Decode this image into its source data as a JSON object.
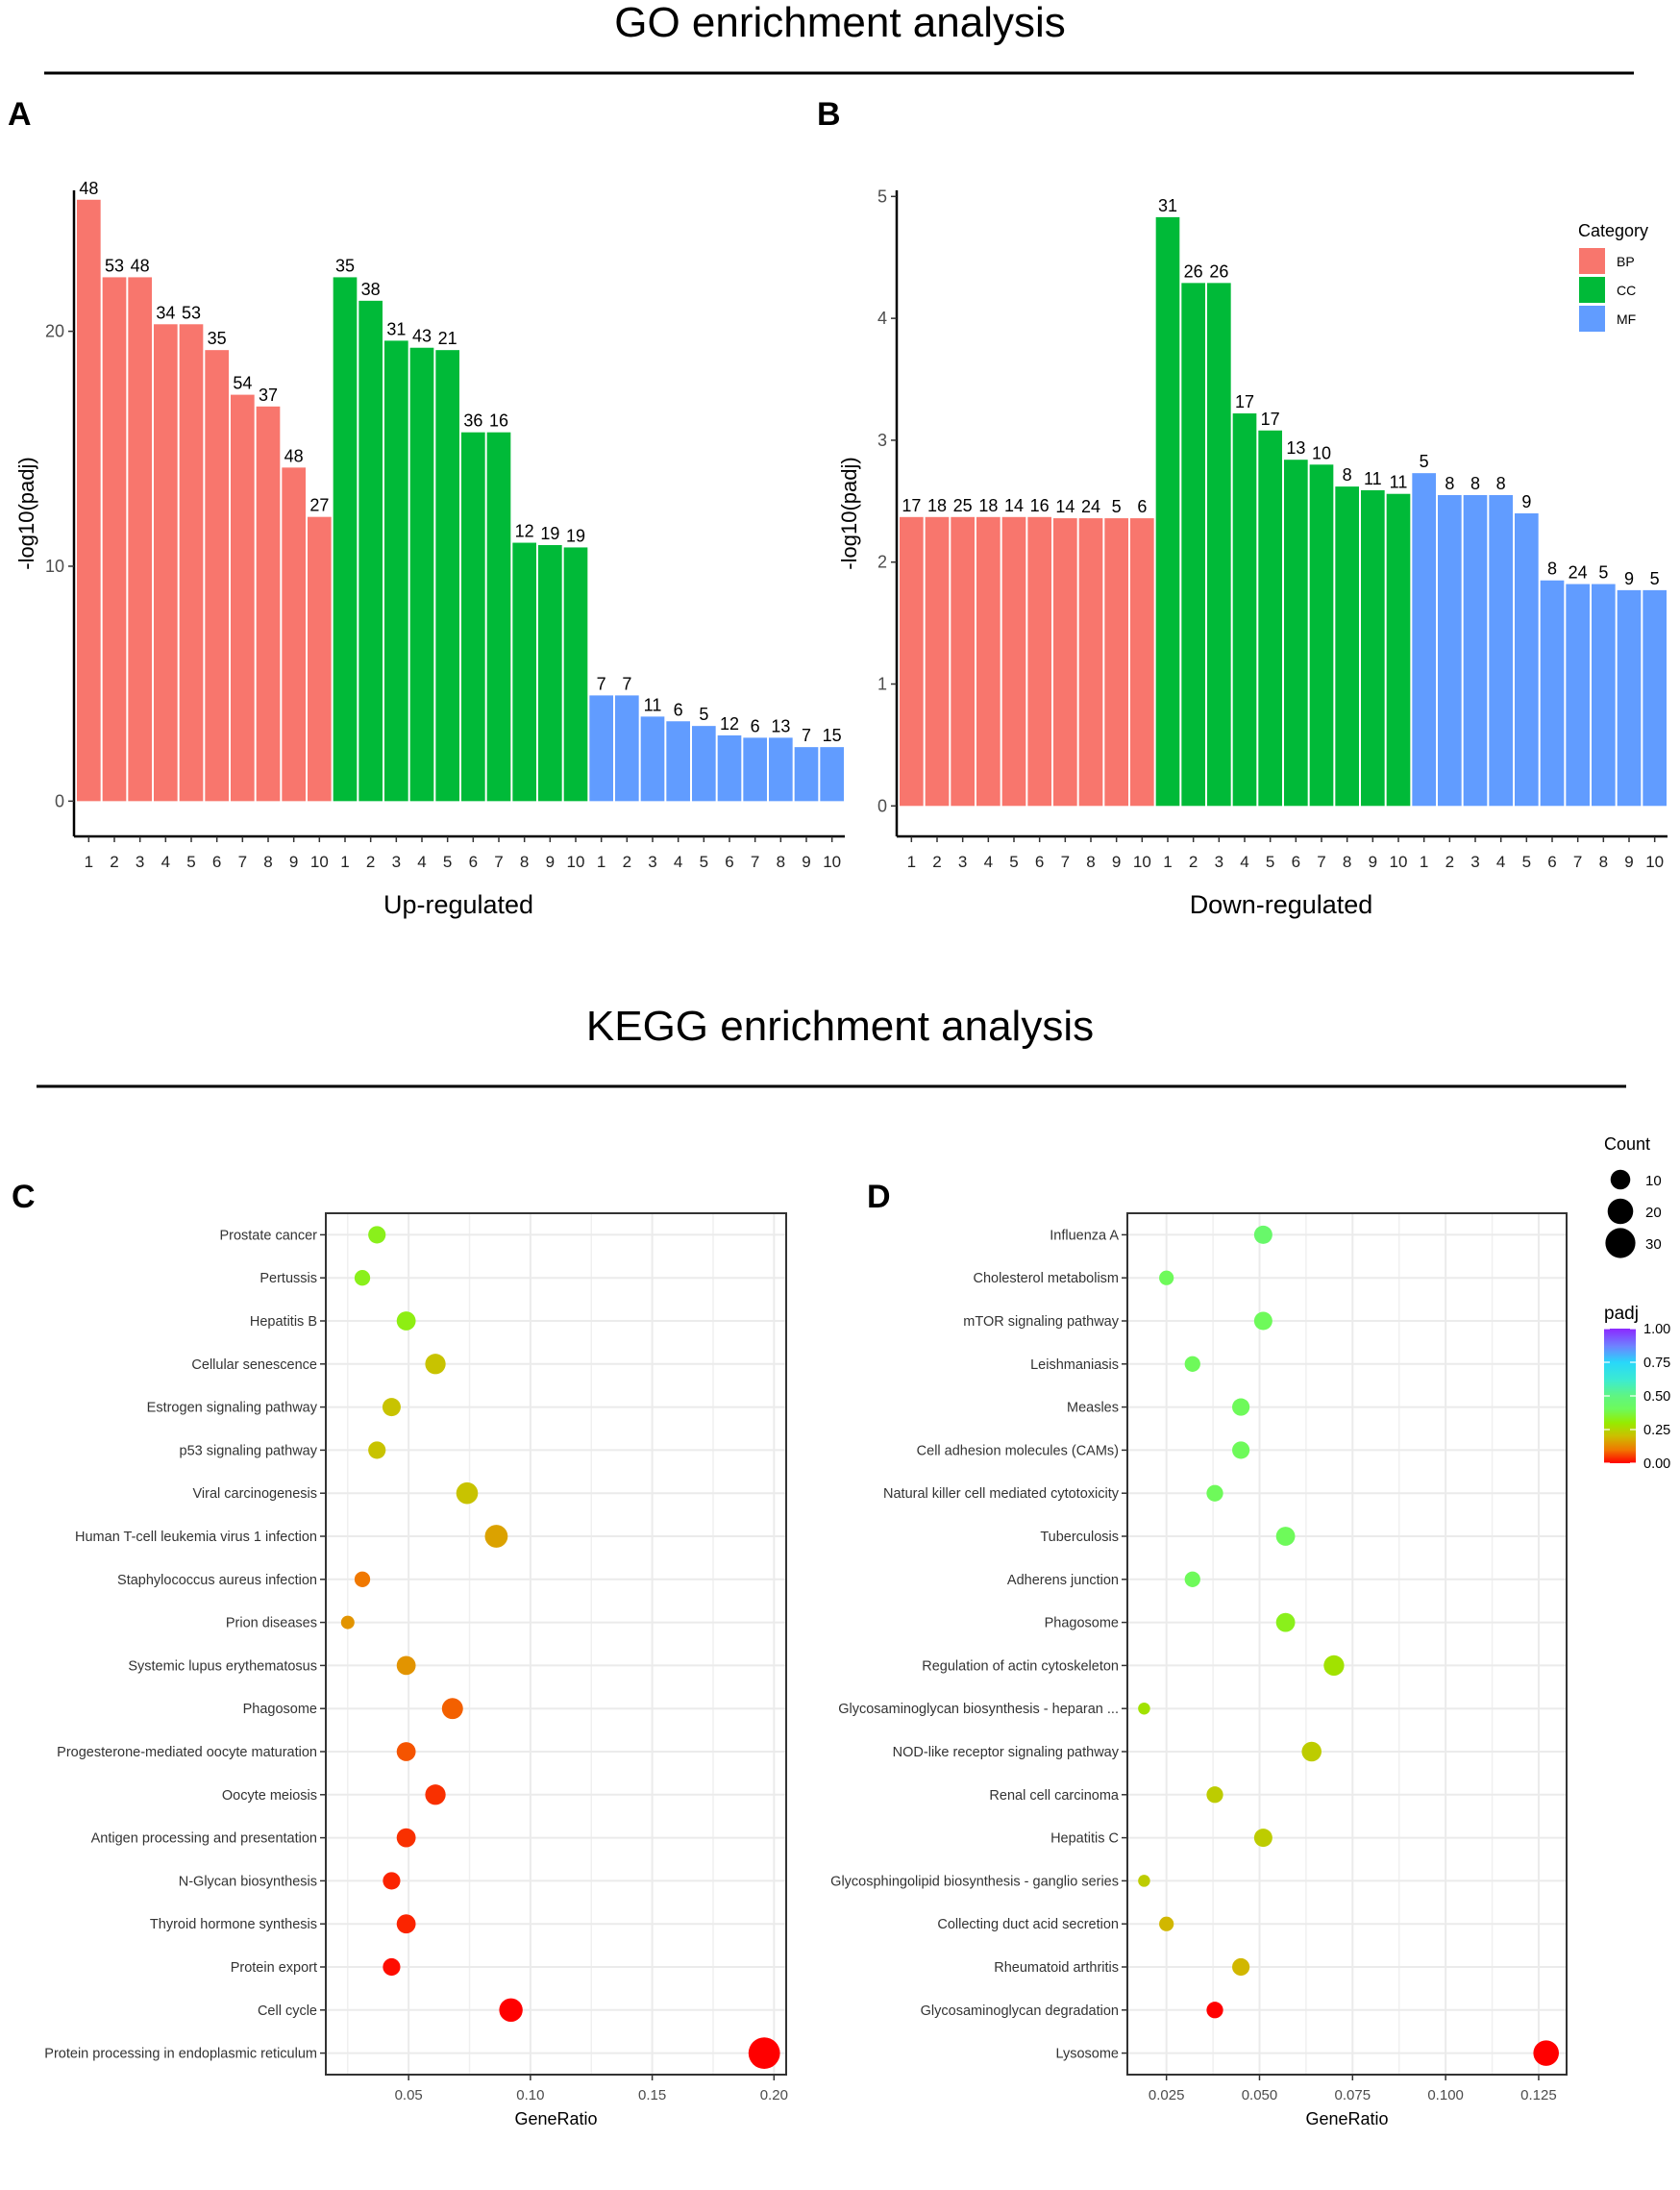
{
  "figure": {
    "go_section_title": "GO enrichment analysis",
    "kegg_section_title": "KEGG enrichment analysis",
    "panel_labels": [
      "A",
      "B",
      "C",
      "D"
    ]
  },
  "chart_data": [
    {
      "panel": "A",
      "type": "bar",
      "xlabel": "Up-regulated",
      "ylabel": "-log10(padj)",
      "ylim": [
        -1.5,
        26
      ],
      "yticks": [
        0,
        10,
        20
      ],
      "grid": false,
      "categories": [
        "1",
        "2",
        "3",
        "4",
        "5",
        "6",
        "7",
        "8",
        "9",
        "10",
        "1",
        "2",
        "3",
        "4",
        "5",
        "6",
        "7",
        "8",
        "9",
        "10",
        "1",
        "2",
        "3",
        "4",
        "5",
        "6",
        "7",
        "8",
        "9",
        "10"
      ],
      "series": [
        {
          "name": "BP",
          "color": "#F8766D",
          "values": [
            25.6,
            22.3,
            22.3,
            20.3,
            20.3,
            19.2,
            17.3,
            16.8,
            14.2,
            12.1
          ],
          "labels": [
            48,
            53,
            48,
            34,
            53,
            35,
            54,
            37,
            48,
            27
          ]
        },
        {
          "name": "CC",
          "color": "#00BA38",
          "values": [
            22.3,
            21.3,
            19.6,
            19.3,
            19.2,
            15.7,
            15.7,
            11.0,
            10.9,
            10.8
          ],
          "labels": [
            35,
            38,
            31,
            43,
            21,
            36,
            16,
            12,
            19,
            19
          ]
        },
        {
          "name": "MF",
          "color": "#619CFF",
          "values": [
            4.5,
            4.5,
            3.6,
            3.4,
            3.2,
            2.8,
            2.7,
            2.7,
            2.3,
            2.3
          ],
          "labels": [
            7,
            7,
            11,
            6,
            5,
            12,
            6,
            13,
            7,
            15
          ]
        }
      ]
    },
    {
      "panel": "B",
      "type": "bar",
      "xlabel": "Down-regulated",
      "ylabel": "-log10(padj)",
      "ylim": [
        -0.25,
        5.05
      ],
      "yticks": [
        0,
        1,
        2,
        3,
        4,
        5
      ],
      "grid": false,
      "legend": {
        "title": "Category",
        "position": "top-right",
        "items": [
          "BP",
          "CC",
          "MF"
        ]
      },
      "categories": [
        "1",
        "2",
        "3",
        "4",
        "5",
        "6",
        "7",
        "8",
        "9",
        "10",
        "1",
        "2",
        "3",
        "4",
        "5",
        "6",
        "7",
        "8",
        "9",
        "10",
        "1",
        "2",
        "3",
        "4",
        "5",
        "6",
        "7",
        "8",
        "9",
        "10"
      ],
      "series": [
        {
          "name": "BP",
          "color": "#F8766D",
          "values": [
            2.37,
            2.37,
            2.37,
            2.37,
            2.37,
            2.37,
            2.36,
            2.36,
            2.36,
            2.36
          ],
          "labels": [
            17,
            18,
            25,
            18,
            14,
            16,
            14,
            24,
            5,
            6
          ]
        },
        {
          "name": "CC",
          "color": "#00BA38",
          "values": [
            4.83,
            4.29,
            4.29,
            3.22,
            3.08,
            2.84,
            2.8,
            2.62,
            2.59,
            2.56
          ],
          "labels": [
            31,
            26,
            26,
            17,
            17,
            13,
            10,
            8,
            11,
            11
          ]
        },
        {
          "name": "MF",
          "color": "#619CFF",
          "values": [
            2.73,
            2.55,
            2.55,
            2.55,
            2.4,
            1.85,
            1.82,
            1.82,
            1.77,
            1.77
          ],
          "labels": [
            5,
            8,
            8,
            8,
            9,
            8,
            24,
            5,
            9,
            5
          ]
        }
      ]
    },
    {
      "panel": "C",
      "type": "scatter",
      "subtitle": "Up-regulated",
      "xlabel": "GeneRatio",
      "ylabel": "",
      "xlim": [
        0.016,
        0.205
      ],
      "xticks": [
        "0.05",
        "0.10",
        "0.15",
        "0.20"
      ],
      "xtick_values": [
        0.05,
        0.1,
        0.15,
        0.2
      ],
      "grid": true,
      "points": [
        {
          "term": "Prostate cancer",
          "gene_ratio": 0.037,
          "count": 7,
          "padj": 0.33
        },
        {
          "term": "Pertussis",
          "gene_ratio": 0.031,
          "count": 5,
          "padj": 0.33
        },
        {
          "term": "Hepatitis B",
          "gene_ratio": 0.049,
          "count": 9,
          "padj": 0.32
        },
        {
          "term": "Cellular senescence",
          "gene_ratio": 0.061,
          "count": 11,
          "padj": 0.21
        },
        {
          "term": "Estrogen signaling pathway",
          "gene_ratio": 0.043,
          "count": 8,
          "padj": 0.21
        },
        {
          "term": "p53 signaling pathway",
          "gene_ratio": 0.037,
          "count": 7,
          "padj": 0.21
        },
        {
          "term": "Viral carcinogenesis",
          "gene_ratio": 0.074,
          "count": 13,
          "padj": 0.21
        },
        {
          "term": "Human T-cell leukemia virus 1 infection",
          "gene_ratio": 0.086,
          "count": 15,
          "padj": 0.16
        },
        {
          "term": "Staphylococcus aureus infection",
          "gene_ratio": 0.031,
          "count": 5,
          "padj": 0.1
        },
        {
          "term": "Prion diseases",
          "gene_ratio": 0.025,
          "count": 3,
          "padj": 0.14
        },
        {
          "term": "Systemic lupus erythematosus",
          "gene_ratio": 0.049,
          "count": 9,
          "padj": 0.14
        },
        {
          "term": "Phagosome",
          "gene_ratio": 0.068,
          "count": 12,
          "padj": 0.08
        },
        {
          "term": "Progesterone-mediated oocyte maturation",
          "gene_ratio": 0.049,
          "count": 9,
          "padj": 0.07
        },
        {
          "term": "Oocyte meiosis",
          "gene_ratio": 0.061,
          "count": 11,
          "padj": 0.04
        },
        {
          "term": "Antigen processing and presentation",
          "gene_ratio": 0.049,
          "count": 9,
          "padj": 0.04
        },
        {
          "term": "N-Glycan biosynthesis",
          "gene_ratio": 0.043,
          "count": 7,
          "padj": 0.03
        },
        {
          "term": "Thyroid hormone synthesis",
          "gene_ratio": 0.049,
          "count": 9,
          "padj": 0.03
        },
        {
          "term": "Protein export",
          "gene_ratio": 0.043,
          "count": 7,
          "padj": 0.01
        },
        {
          "term": "Cell cycle",
          "gene_ratio": 0.092,
          "count": 16,
          "padj": 0.0
        },
        {
          "term": "Protein processing in endoplasmic reticulum",
          "gene_ratio": 0.196,
          "count": 34,
          "padj": 0.0
        }
      ]
    },
    {
      "panel": "D",
      "type": "scatter",
      "subtitle": "Down-regulated",
      "xlabel": "GeneRatio",
      "ylabel": "",
      "xlim": [
        0.0145,
        0.1325
      ],
      "xticks": [
        "0.025",
        "0.050",
        "0.075",
        "0.100",
        "0.125"
      ],
      "xtick_values": [
        0.025,
        0.05,
        0.075,
        0.1,
        0.125
      ],
      "grid": true,
      "legend": {
        "size_title": "Count",
        "size_items": [
          10,
          20,
          30
        ],
        "color_title": "padj",
        "color_ticks": [
          "1.00",
          "0.75",
          "0.50",
          "0.25",
          "0.00"
        ],
        "color_tick_values": [
          1.0,
          0.75,
          0.5,
          0.25,
          0.0
        ],
        "position": "right"
      },
      "points": [
        {
          "term": "Influenza A",
          "gene_ratio": 0.051,
          "count": 8,
          "padj": 0.44
        },
        {
          "term": "Cholesterol metabolism",
          "gene_ratio": 0.025,
          "count": 4,
          "padj": 0.4
        },
        {
          "term": "mTOR signaling pathway",
          "gene_ratio": 0.051,
          "count": 8,
          "padj": 0.4
        },
        {
          "term": "Leishmaniasis",
          "gene_ratio": 0.032,
          "count": 5,
          "padj": 0.4
        },
        {
          "term": "Measles",
          "gene_ratio": 0.045,
          "count": 7,
          "padj": 0.4
        },
        {
          "term": "Cell adhesion molecules (CAMs)",
          "gene_ratio": 0.045,
          "count": 7,
          "padj": 0.4
        },
        {
          "term": "Natural killer cell mediated cytotoxicity",
          "gene_ratio": 0.038,
          "count": 6,
          "padj": 0.4
        },
        {
          "term": "Tuberculosis",
          "gene_ratio": 0.057,
          "count": 9,
          "padj": 0.4
        },
        {
          "term": "Adherens junction",
          "gene_ratio": 0.032,
          "count": 5,
          "padj": 0.4
        },
        {
          "term": "Phagosome",
          "gene_ratio": 0.057,
          "count": 9,
          "padj": 0.33
        },
        {
          "term": "Regulation of actin cytoskeleton",
          "gene_ratio": 0.07,
          "count": 11,
          "padj": 0.28
        },
        {
          "term": "Glycosaminoglycan biosynthesis - heparan ...",
          "gene_ratio": 0.019,
          "count": 2,
          "padj": 0.28
        },
        {
          "term": "NOD-like receptor signaling pathway",
          "gene_ratio": 0.064,
          "count": 10,
          "padj": 0.23
        },
        {
          "term": "Renal cell carcinoma",
          "gene_ratio": 0.038,
          "count": 6,
          "padj": 0.23
        },
        {
          "term": "Hepatitis C",
          "gene_ratio": 0.051,
          "count": 8,
          "padj": 0.23
        },
        {
          "term": "Glycosphingolipid biosynthesis - ganglio series",
          "gene_ratio": 0.019,
          "count": 2,
          "padj": 0.23
        },
        {
          "term": "Collecting duct acid secretion",
          "gene_ratio": 0.025,
          "count": 4,
          "padj": 0.19
        },
        {
          "term": "Rheumatoid arthritis",
          "gene_ratio": 0.045,
          "count": 7,
          "padj": 0.19
        },
        {
          "term": "Glycosaminoglycan degradation",
          "gene_ratio": 0.038,
          "count": 6,
          "padj": 0.0
        },
        {
          "term": "Lysosome",
          "gene_ratio": 0.127,
          "count": 20,
          "padj": 0.0
        }
      ]
    }
  ]
}
